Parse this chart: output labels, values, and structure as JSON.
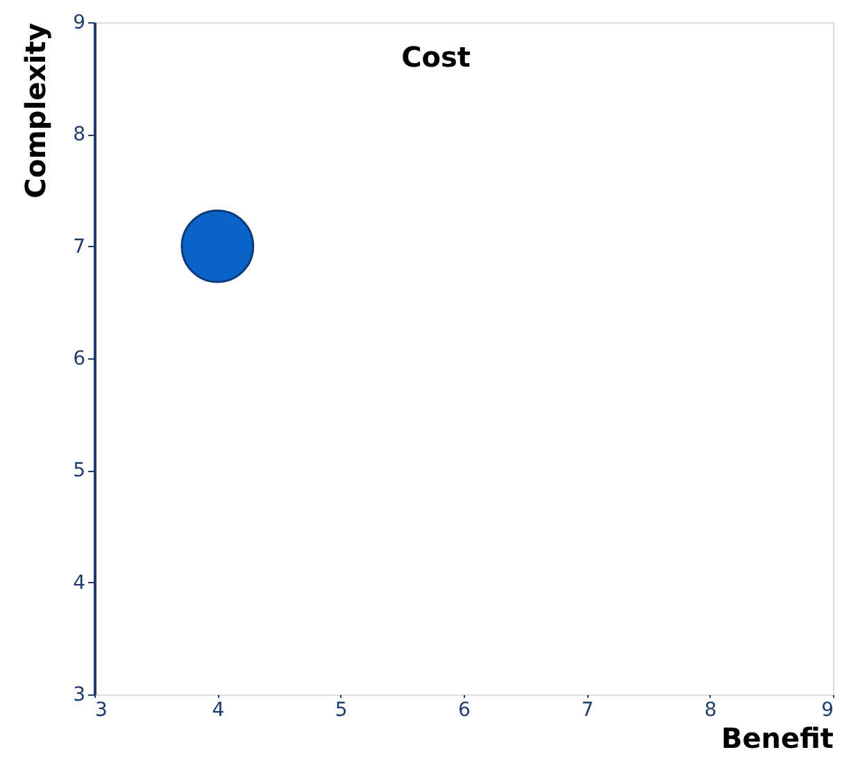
{
  "chart_data": {
    "type": "bubble",
    "title": "Cost",
    "xlabel": "Benefit",
    "ylabel": "Complexity",
    "x": [
      4
    ],
    "values": [
      7
    ],
    "sizes": [
      1
    ],
    "color": "#0a64c8",
    "xlim": [
      3,
      9
    ],
    "xticks": [
      3,
      4,
      5,
      6,
      7,
      8,
      9
    ],
    "ylim": [
      3,
      9
    ],
    "yticks": [
      3,
      4,
      5,
      6,
      7,
      8,
      9
    ],
    "grid": false
  }
}
